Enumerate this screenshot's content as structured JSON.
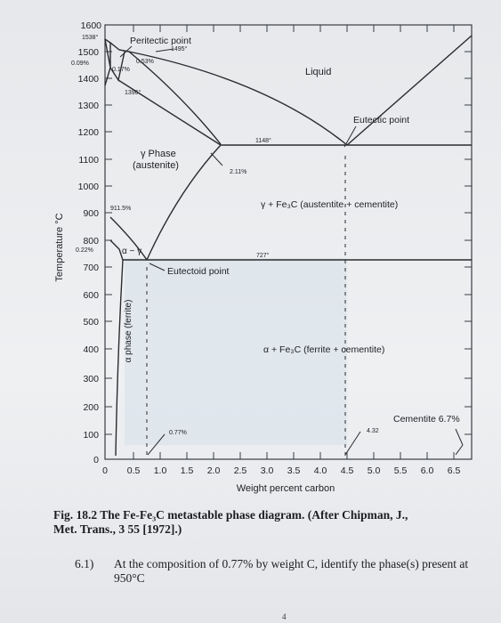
{
  "diagram": {
    "y_axis_label": "Temperature °C",
    "x_axis_label": "Weight percent carbon",
    "y_ticks": [
      "1600",
      "1500",
      "1400",
      "1300",
      "1200",
      "1100",
      "1000",
      "900",
      "800",
      "700",
      "600",
      "500",
      "400",
      "300",
      "200",
      "100",
      "0"
    ],
    "x_ticks": [
      "0",
      "0.5",
      "1.0",
      "1.5",
      "2.0",
      "2.5",
      "3.0",
      "3.5",
      "4.0",
      "4.5",
      "5.0",
      "5.5",
      "6.0",
      "6.5"
    ],
    "phases": {
      "liquid": "Liquid",
      "gamma_line1": "γ Phase",
      "gamma_line2": "(austenite)",
      "gamma_cementite": "γ + Fe₃C (austentite + cementite)",
      "alpha_cementite": "α + Fe₃C (ferrite + cementite)",
      "alpha_gamma": "α − γ",
      "alpha_ferrite": "α phase (ferrite)"
    },
    "annotations": {
      "peritectic_point": "Peritectic point",
      "eutectic_point": "Eutectic point",
      "eutectoid_point": "Eutectoid point",
      "cementite": "Cementite 6.7%"
    },
    "values": {
      "t1538": "1538°",
      "t1495": "1495°",
      "c009": "0.09%",
      "c017": "0.17%",
      "c053": "0.53%",
      "t1396": "1396°",
      "t1148": "1148°",
      "c211": "2.11%",
      "t9115": "911.5%",
      "t727": "727°",
      "c022": "0.22%",
      "c077": "0.77%",
      "c432": "4.32"
    }
  },
  "caption": "Fig. 18.2  The Fe-Fe₃C metastable phase diagram. (After Chipman, J., Met. Trans., 3 55 [1972].)",
  "question": {
    "number": "6.1)",
    "text": "At the composition of 0.77% by weight C, identify the phase(s) present at 950°C"
  },
  "page_number": "4",
  "colors": {
    "frame": "#3a3d42",
    "line": "#2a2c30",
    "shadow_region": "#cfd9e4"
  }
}
